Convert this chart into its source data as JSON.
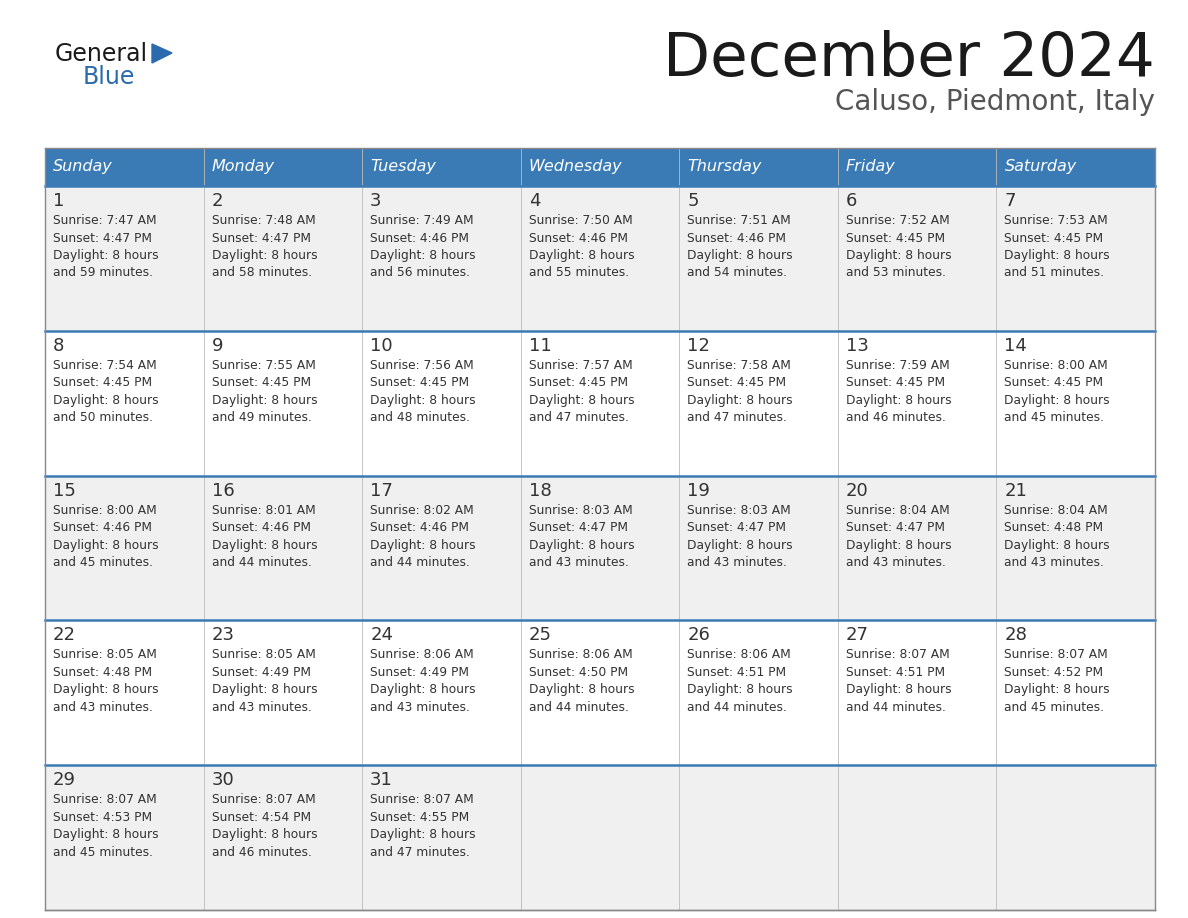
{
  "title": "December 2024",
  "subtitle": "Caluso, Piedmont, Italy",
  "header_bg": "#3a7ab5",
  "header_text_color": "#ffffff",
  "border_color": "#3a7ab5",
  "days_of_week": [
    "Sunday",
    "Monday",
    "Tuesday",
    "Wednesday",
    "Thursday",
    "Friday",
    "Saturday"
  ],
  "weeks": [
    [
      {
        "day": "1",
        "sunrise": "7:47 AM",
        "sunset": "4:47 PM",
        "dl1": "Daylight: 8 hours",
        "dl2": "and 59 minutes."
      },
      {
        "day": "2",
        "sunrise": "7:48 AM",
        "sunset": "4:47 PM",
        "dl1": "Daylight: 8 hours",
        "dl2": "and 58 minutes."
      },
      {
        "day": "3",
        "sunrise": "7:49 AM",
        "sunset": "4:46 PM",
        "dl1": "Daylight: 8 hours",
        "dl2": "and 56 minutes."
      },
      {
        "day": "4",
        "sunrise": "7:50 AM",
        "sunset": "4:46 PM",
        "dl1": "Daylight: 8 hours",
        "dl2": "and 55 minutes."
      },
      {
        "day": "5",
        "sunrise": "7:51 AM",
        "sunset": "4:46 PM",
        "dl1": "Daylight: 8 hours",
        "dl2": "and 54 minutes."
      },
      {
        "day": "6",
        "sunrise": "7:52 AM",
        "sunset": "4:45 PM",
        "dl1": "Daylight: 8 hours",
        "dl2": "and 53 minutes."
      },
      {
        "day": "7",
        "sunrise": "7:53 AM",
        "sunset": "4:45 PM",
        "dl1": "Daylight: 8 hours",
        "dl2": "and 51 minutes."
      }
    ],
    [
      {
        "day": "8",
        "sunrise": "7:54 AM",
        "sunset": "4:45 PM",
        "dl1": "Daylight: 8 hours",
        "dl2": "and 50 minutes."
      },
      {
        "day": "9",
        "sunrise": "7:55 AM",
        "sunset": "4:45 PM",
        "dl1": "Daylight: 8 hours",
        "dl2": "and 49 minutes."
      },
      {
        "day": "10",
        "sunrise": "7:56 AM",
        "sunset": "4:45 PM",
        "dl1": "Daylight: 8 hours",
        "dl2": "and 48 minutes."
      },
      {
        "day": "11",
        "sunrise": "7:57 AM",
        "sunset": "4:45 PM",
        "dl1": "Daylight: 8 hours",
        "dl2": "and 47 minutes."
      },
      {
        "day": "12",
        "sunrise": "7:58 AM",
        "sunset": "4:45 PM",
        "dl1": "Daylight: 8 hours",
        "dl2": "and 47 minutes."
      },
      {
        "day": "13",
        "sunrise": "7:59 AM",
        "sunset": "4:45 PM",
        "dl1": "Daylight: 8 hours",
        "dl2": "and 46 minutes."
      },
      {
        "day": "14",
        "sunrise": "8:00 AM",
        "sunset": "4:45 PM",
        "dl1": "Daylight: 8 hours",
        "dl2": "and 45 minutes."
      }
    ],
    [
      {
        "day": "15",
        "sunrise": "8:00 AM",
        "sunset": "4:46 PM",
        "dl1": "Daylight: 8 hours",
        "dl2": "and 45 minutes."
      },
      {
        "day": "16",
        "sunrise": "8:01 AM",
        "sunset": "4:46 PM",
        "dl1": "Daylight: 8 hours",
        "dl2": "and 44 minutes."
      },
      {
        "day": "17",
        "sunrise": "8:02 AM",
        "sunset": "4:46 PM",
        "dl1": "Daylight: 8 hours",
        "dl2": "and 44 minutes."
      },
      {
        "day": "18",
        "sunrise": "8:03 AM",
        "sunset": "4:47 PM",
        "dl1": "Daylight: 8 hours",
        "dl2": "and 43 minutes."
      },
      {
        "day": "19",
        "sunrise": "8:03 AM",
        "sunset": "4:47 PM",
        "dl1": "Daylight: 8 hours",
        "dl2": "and 43 minutes."
      },
      {
        "day": "20",
        "sunrise": "8:04 AM",
        "sunset": "4:47 PM",
        "dl1": "Daylight: 8 hours",
        "dl2": "and 43 minutes."
      },
      {
        "day": "21",
        "sunrise": "8:04 AM",
        "sunset": "4:48 PM",
        "dl1": "Daylight: 8 hours",
        "dl2": "and 43 minutes."
      }
    ],
    [
      {
        "day": "22",
        "sunrise": "8:05 AM",
        "sunset": "4:48 PM",
        "dl1": "Daylight: 8 hours",
        "dl2": "and 43 minutes."
      },
      {
        "day": "23",
        "sunrise": "8:05 AM",
        "sunset": "4:49 PM",
        "dl1": "Daylight: 8 hours",
        "dl2": "and 43 minutes."
      },
      {
        "day": "24",
        "sunrise": "8:06 AM",
        "sunset": "4:49 PM",
        "dl1": "Daylight: 8 hours",
        "dl2": "and 43 minutes."
      },
      {
        "day": "25",
        "sunrise": "8:06 AM",
        "sunset": "4:50 PM",
        "dl1": "Daylight: 8 hours",
        "dl2": "and 44 minutes."
      },
      {
        "day": "26",
        "sunrise": "8:06 AM",
        "sunset": "4:51 PM",
        "dl1": "Daylight: 8 hours",
        "dl2": "and 44 minutes."
      },
      {
        "day": "27",
        "sunrise": "8:07 AM",
        "sunset": "4:51 PM",
        "dl1": "Daylight: 8 hours",
        "dl2": "and 44 minutes."
      },
      {
        "day": "28",
        "sunrise": "8:07 AM",
        "sunset": "4:52 PM",
        "dl1": "Daylight: 8 hours",
        "dl2": "and 45 minutes."
      }
    ],
    [
      {
        "day": "29",
        "sunrise": "8:07 AM",
        "sunset": "4:53 PM",
        "dl1": "Daylight: 8 hours",
        "dl2": "and 45 minutes."
      },
      {
        "day": "30",
        "sunrise": "8:07 AM",
        "sunset": "4:54 PM",
        "dl1": "Daylight: 8 hours",
        "dl2": "and 46 minutes."
      },
      {
        "day": "31",
        "sunrise": "8:07 AM",
        "sunset": "4:55 PM",
        "dl1": "Daylight: 8 hours",
        "dl2": "and 47 minutes."
      },
      null,
      null,
      null,
      null
    ]
  ],
  "logo_general_color": "#1a1a1a",
  "logo_blue_color": "#2a6aad",
  "title_color": "#1a1a1a",
  "subtitle_color": "#555555",
  "cell_bg_light": "#f0f0f0",
  "cell_bg_white": "#ffffff",
  "text_color": "#333333"
}
